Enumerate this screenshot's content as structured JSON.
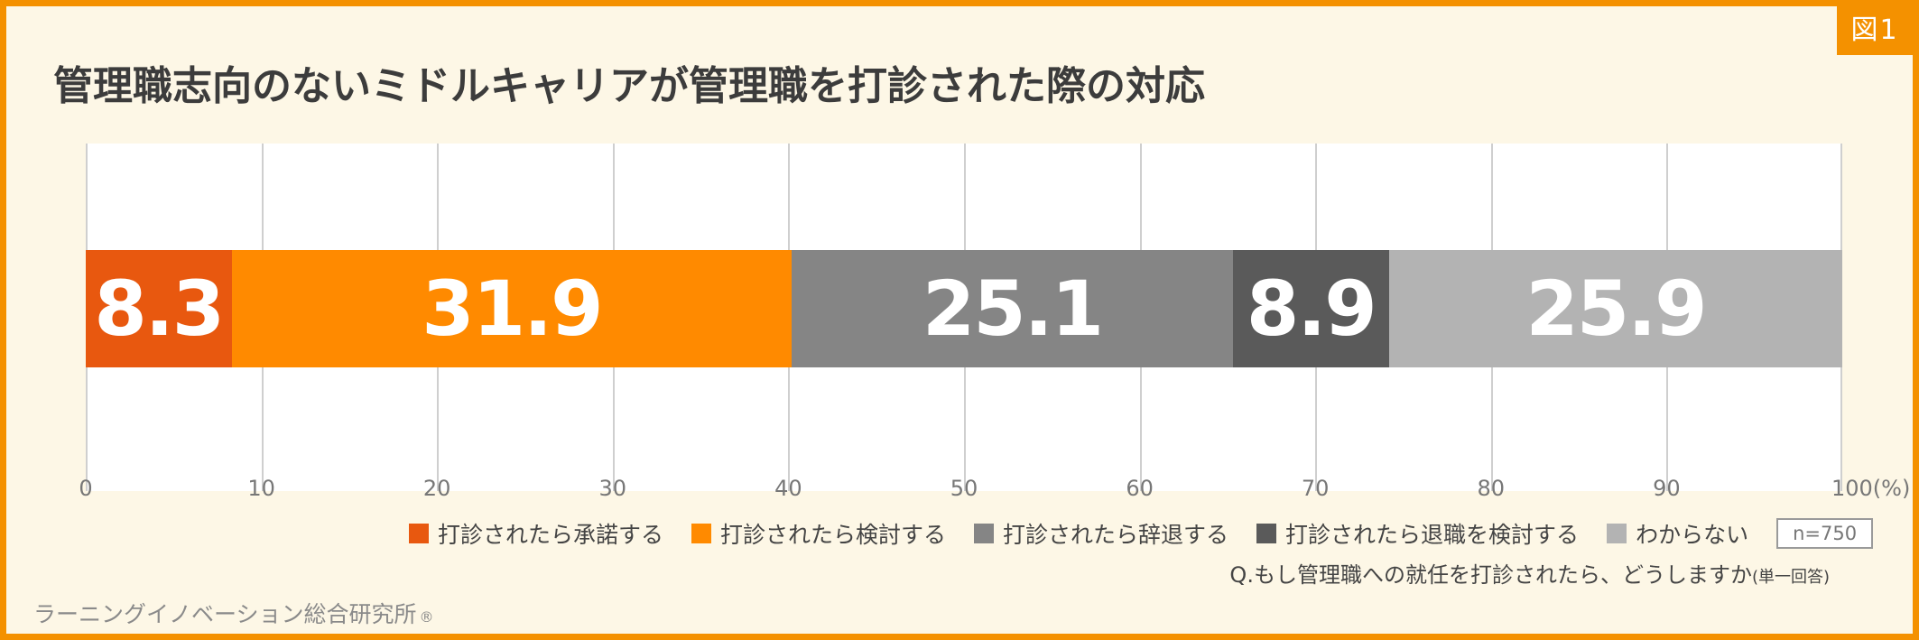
{
  "figure_tag": "図1",
  "chart_data": {
    "type": "bar",
    "stacked": true,
    "orientation": "horizontal",
    "title": "管理職志向のないミドルキャリアが管理職を打診された際の対応",
    "xlim": [
      0,
      100
    ],
    "x_ticks": [
      "0",
      "10",
      "20",
      "30",
      "40",
      "50",
      "60",
      "70",
      "80",
      "90",
      "100(%)"
    ],
    "grid": true,
    "legend_position": "bottom",
    "series": [
      {
        "name": "打診されたら承諾する",
        "value": 8.3,
        "label": "8.3",
        "color": "#e8580f"
      },
      {
        "name": "打診されたら検討する",
        "value": 31.9,
        "label": "31.9",
        "color": "#ff8a00"
      },
      {
        "name": "打診されたら辞退する",
        "value": 25.1,
        "label": "25.1",
        "color": "#858585"
      },
      {
        "name": "打診されたら退職を検討する",
        "value": 8.9,
        "label": "8.9",
        "color": "#5a5a5a"
      },
      {
        "name": "わからない",
        "value": 25.9,
        "label": "25.9",
        "color": "#b3b3b3"
      }
    ],
    "sample_size": "n=750"
  },
  "question": {
    "text": "Q.もし管理職への就任を打診されたら、どうしますか",
    "note": "(単一回答)"
  },
  "credit": {
    "text": "ラーニングイノベーション総合研究所",
    "mark": "®"
  }
}
